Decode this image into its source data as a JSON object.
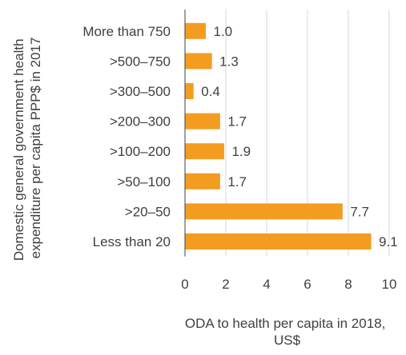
{
  "chart_data": {
    "type": "bar",
    "orientation": "horizontal",
    "categories": [
      "More than 750",
      ">500–750",
      ">300–500",
      ">200–300",
      ">100–200",
      ">50–100",
      ">20–50",
      "Less than 20"
    ],
    "values": [
      1.0,
      1.3,
      0.4,
      1.7,
      1.9,
      1.7,
      7.7,
      9.1
    ],
    "data_labels": [
      "1.0",
      "1.3",
      "0.4",
      "1.7",
      "1.9",
      "1.7",
      "7.7",
      "9.1"
    ],
    "xlim": [
      0,
      10
    ],
    "xticks": [
      0,
      2,
      4,
      6,
      8,
      10
    ],
    "xtick_labels": [
      "0",
      "2",
      "4",
      "6",
      "8",
      "10"
    ],
    "xlabel_lines": [
      "ODA to health per capita in 2018,",
      "US$"
    ],
    "ylabel_lines": [
      "Domestic general government health",
      "expenditure per capita PPP$ in 2017"
    ],
    "grid": "vertical",
    "colors": {
      "bar": "#f39c1f",
      "grid": "#d9d9d9",
      "axis": "#404040",
      "text": "#404040"
    }
  }
}
